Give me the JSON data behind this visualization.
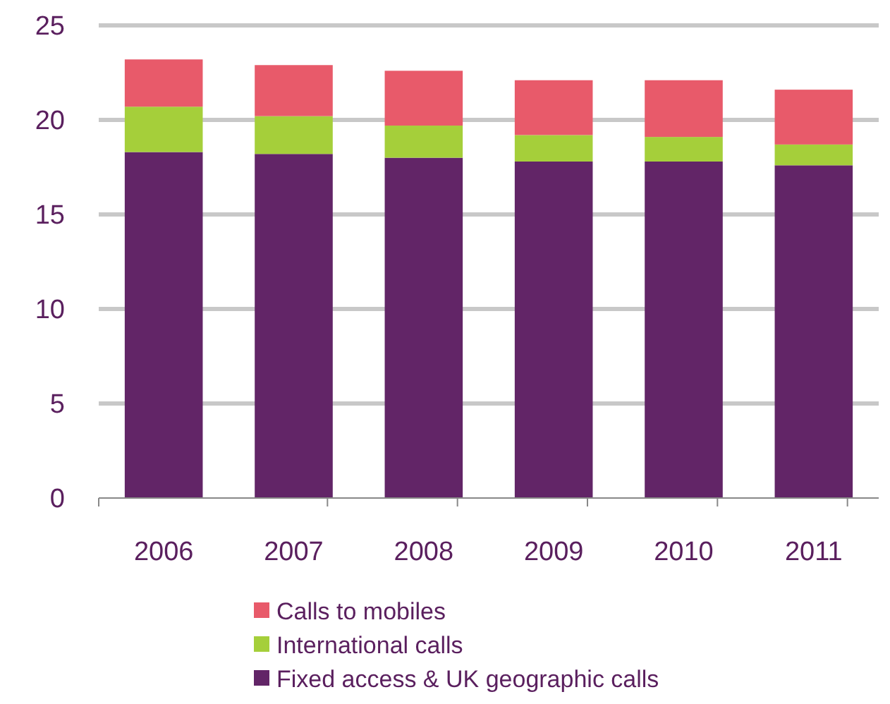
{
  "chart_data": {
    "type": "bar",
    "stacked": true,
    "categories": [
      "2006",
      "2007",
      "2008",
      "2009",
      "2010",
      "2011"
    ],
    "series": [
      {
        "name": "Fixed access & UK geographic calls",
        "color": "#622567",
        "values": [
          18.3,
          18.2,
          18.0,
          17.8,
          17.8,
          17.6
        ]
      },
      {
        "name": "International calls",
        "color": "#a5cf3a",
        "values": [
          2.4,
          2.0,
          1.7,
          1.4,
          1.3,
          1.1
        ]
      },
      {
        "name": "Calls to mobiles",
        "color": "#e85a6a",
        "values": [
          2.5,
          2.7,
          2.9,
          2.9,
          3.0,
          2.9
        ]
      }
    ],
    "ylim": [
      0,
      25
    ],
    "yticks": [
      0,
      5,
      10,
      15,
      20,
      25
    ],
    "grid": "y",
    "legend": "bottom"
  }
}
